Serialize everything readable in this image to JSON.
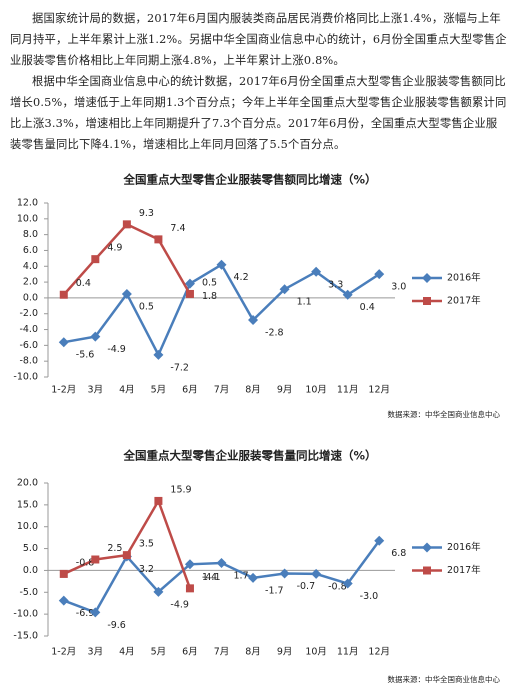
{
  "document": {
    "paragraphs": [
      "据国家统计局的数据，2017年6月国内服装类商品居民消费价格同比上涨1.4%，涨幅与上年同月持平，上半年累计上涨1.2%。另据中华全国商业信息中心的统计，6月份全国重点大型零售企业服装零售价格相比上年同期上涨4.8%，上半年累计上涨0.8%。",
      "根据中华全国商业信息中心的统计数据，2017年6月份全国重点大型零售企业服装零售额同比增长0.5%，增速低于上年同期1.3个百分点；今年上半年全国重点大型零售企业服装零售额累计同比上涨3.3%，增速相比上年同期提升了7.3个百分点。2017年6月份，全国重点大型零售企业服装零售量同比下降4.1%，增速相比上年同月回落了5.5个百分点。"
    ]
  },
  "chart_data": [
    {
      "type": "line",
      "title": "全国重点大型零售企业服装零售额同比增速（%）",
      "source": "数据来源：中华全国商业信息中心",
      "categories": [
        "1-2月",
        "3月",
        "4月",
        "5月",
        "6月",
        "7月",
        "8月",
        "9月",
        "10月",
        "11月",
        "12月"
      ],
      "series": [
        {
          "name": "2016年",
          "color": "#4a7ebb",
          "marker": "diamond",
          "values": [
            -5.6,
            -4.9,
            0.5,
            -7.2,
            1.8,
            4.2,
            -2.8,
            1.1,
            3.3,
            0.4,
            3.0
          ],
          "value_labels": [
            "-5.6",
            "-4.9",
            "0.5",
            "-7.2",
            "1.8",
            "4.2",
            "-2.8",
            "1.1",
            "3.3",
            "0.4",
            "3.0"
          ]
        },
        {
          "name": "2017年",
          "color": "#be4b48",
          "marker": "square",
          "values": [
            0.4,
            4.9,
            9.3,
            7.4,
            0.5,
            null,
            null,
            null,
            null,
            null,
            null
          ],
          "value_labels": [
            "0.4",
            "4.9",
            "9.3",
            "7.4",
            "0.5",
            null,
            null,
            null,
            null,
            null,
            null
          ]
        }
      ],
      "ylim": [
        -10,
        12
      ],
      "yticks": [
        {
          "value": -10,
          "label": "-10.0"
        },
        {
          "value": -8,
          "label": "-8.0"
        },
        {
          "value": -6,
          "label": "-6.0"
        },
        {
          "value": -4,
          "label": "-4.0"
        },
        {
          "value": -2,
          "label": "-2.0"
        },
        {
          "value": 0,
          "label": "0.0"
        },
        {
          "value": 2,
          "label": "2.0"
        },
        {
          "value": 4,
          "label": "4.0"
        },
        {
          "value": 6,
          "label": "6.0"
        },
        {
          "value": 8,
          "label": "8.0"
        },
        {
          "value": 10,
          "label": "10.0"
        },
        {
          "value": 12,
          "label": "12.0"
        }
      ],
      "legend": "right"
    },
    {
      "type": "line",
      "title": "全国重点大型零售企业服装零售量同比增速（%）",
      "source": "数据来源：中华全国商业信息中心",
      "categories": [
        "1-2月",
        "3月",
        "4月",
        "5月",
        "6月",
        "7月",
        "8月",
        "9月",
        "10月",
        "11月",
        "12月"
      ],
      "series": [
        {
          "name": "2016年",
          "color": "#4a7ebb",
          "marker": "diamond",
          "values": [
            -6.9,
            -9.6,
            3.2,
            -4.9,
            1.4,
            1.7,
            -1.7,
            -0.7,
            -0.8,
            -3.0,
            6.8
          ],
          "value_labels": [
            "-6.9",
            "-9.6",
            "3.2",
            "-4.9",
            "1.4",
            "1.7",
            "-1.7",
            "-0.7",
            "-0.8",
            "-3.0",
            "6.8"
          ]
        },
        {
          "name": "2017年",
          "color": "#be4b48",
          "marker": "square",
          "values": [
            -0.8,
            2.5,
            3.5,
            15.9,
            -4.1,
            null,
            null,
            null,
            null,
            null,
            null
          ],
          "value_labels": [
            "-0.8",
            "2.5",
            "3.5",
            "15.9",
            "-4.1",
            null,
            null,
            null,
            null,
            null,
            null
          ]
        }
      ],
      "ylim": [
        -15,
        20
      ],
      "yticks": [
        {
          "value": -15,
          "label": "-15.0"
        },
        {
          "value": -10,
          "label": "-10.0"
        },
        {
          "value": -5,
          "label": "-5.0"
        },
        {
          "value": 0,
          "label": "0.0"
        },
        {
          "value": 5,
          "label": "5.0"
        },
        {
          "value": 10,
          "label": "10.0"
        },
        {
          "value": 15,
          "label": "15.0"
        },
        {
          "value": 20,
          "label": "20.0"
        }
      ],
      "legend": "right"
    }
  ]
}
